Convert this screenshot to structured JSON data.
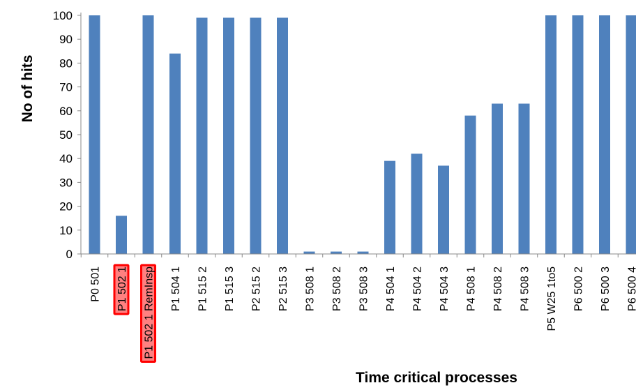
{
  "chart_data": {
    "type": "bar",
    "title": "",
    "xlabel": "Time critical processes",
    "ylabel": "No of hits",
    "ylim": [
      0,
      100
    ],
    "yticks": [
      0,
      10,
      20,
      30,
      40,
      50,
      60,
      70,
      80,
      90,
      100
    ],
    "grid": false,
    "legend": "none",
    "colors": {
      "bar": "#4F81BD",
      "highlight_fill": "#FF8080",
      "highlight_border": "#FF0000",
      "axis": "#888888",
      "text": "#000000"
    },
    "categories": [
      "P0 501",
      "P1 502 1",
      "P1 502 1 RemInsp",
      "P1 504 1",
      "P1 515 2",
      "P1 515 3",
      "P2 515 2",
      "P2 515 3",
      "P3 508 1",
      "P3 508 2",
      "P3 508 3",
      "P4 504 1",
      "P4 504 2",
      "P4 504 3",
      "P4 508 1",
      "P4 508 2",
      "P4 508 3",
      "P5 W25 1to5",
      "P6 500 2",
      "P6 500 3",
      "P6 500 4"
    ],
    "values": [
      100,
      16,
      100,
      84,
      99,
      99,
      99,
      99,
      1,
      1,
      1,
      39,
      42,
      37,
      58,
      63,
      63,
      100,
      100,
      100,
      100
    ],
    "highlighted_categories": [
      "P1 502 1",
      "P1 502 1 RemInsp"
    ]
  }
}
